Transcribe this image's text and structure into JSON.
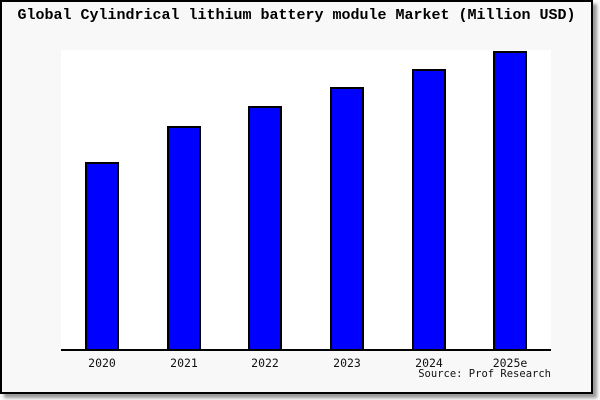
{
  "title": "Global Cylindrical lithium battery module Market (Million USD)",
  "source": "Source: Prof Research",
  "colors": {
    "bar_fill": "#0000ff",
    "bar_border": "#000000",
    "card_background": "#f8f8f8",
    "plot_background": "#ffffff",
    "axis": "#000000",
    "text": "#000000",
    "shadow": "#999999"
  },
  "chart_data": {
    "type": "bar",
    "title": "Global Cylindrical lithium battery module Market (Million USD)",
    "categories": [
      "2020",
      "2021",
      "2022",
      "2023",
      "2024",
      "2025e"
    ],
    "values": [
      187,
      223,
      243,
      262,
      280,
      298
    ],
    "value_scale_note": "no value axis, gridlines or data labels are shown; values are relative bar heights (pixels), max bar nearly touches plot top",
    "xlabel": "",
    "ylabel": "",
    "ylim": [
      0,
      299
    ],
    "grid": false,
    "legend": false,
    "source": "Source: Prof Research"
  }
}
